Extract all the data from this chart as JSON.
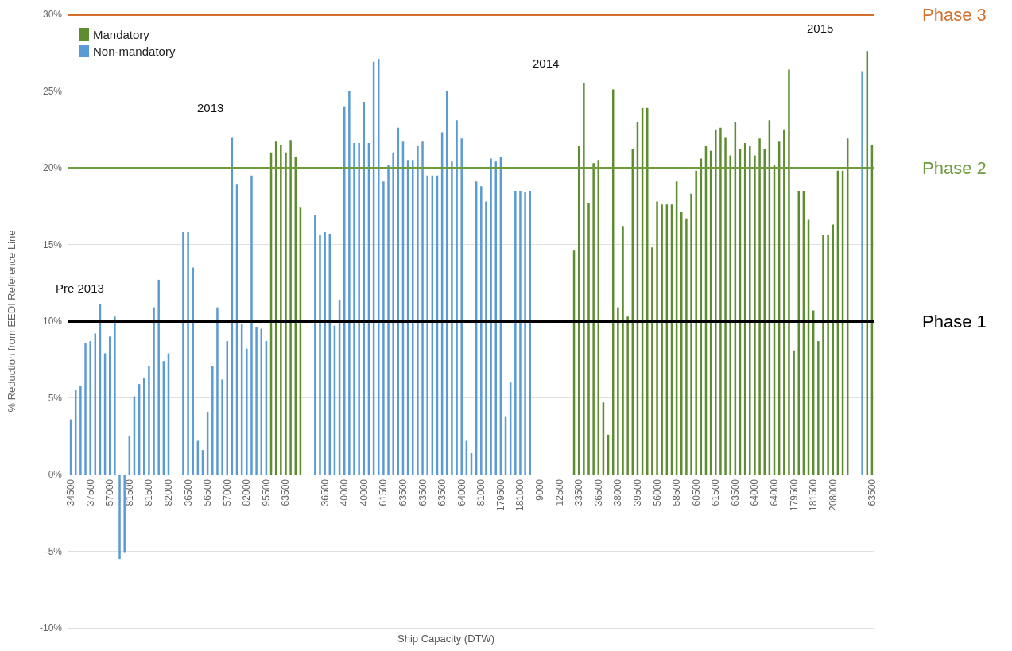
{
  "chart_data": {
    "type": "bar",
    "xlabel": "Ship Capacity (DTW)",
    "ylabel": "% Reduction from EEDI Reference Line",
    "categories": [
      "34500",
      null,
      null,
      null,
      "37500",
      null,
      null,
      null,
      "57000",
      null,
      null,
      null,
      "81500",
      null,
      null,
      null,
      "81500",
      null,
      null,
      null,
      "82000",
      null,
      null,
      null,
      "36500",
      null,
      null,
      null,
      "56500",
      null,
      null,
      null,
      "57000",
      null,
      null,
      null,
      "82000",
      null,
      null,
      null,
      "95500",
      null,
      null,
      null,
      "63500",
      null,
      null,
      null,
      null,
      null,
      null,
      null,
      "36500",
      null,
      null,
      null,
      "40000",
      null,
      null,
      null,
      "40000",
      null,
      null,
      null,
      "61500",
      null,
      null,
      null,
      "63500",
      null,
      null,
      null,
      "63500",
      null,
      null,
      null,
      "63500",
      null,
      null,
      null,
      "64000",
      null,
      null,
      null,
      "81000",
      null,
      null,
      null,
      "179500",
      null,
      null,
      null,
      "181000",
      null,
      null,
      null,
      "9000",
      null,
      null,
      null,
      "12500",
      null,
      null,
      null,
      "33500",
      null,
      null,
      null,
      "36500",
      null,
      null,
      null,
      "38000",
      null,
      null,
      null,
      "39500",
      null,
      null,
      null,
      "56000",
      null,
      null,
      null,
      "58500",
      null,
      null,
      null,
      "60500",
      null,
      null,
      null,
      "61500",
      null,
      null,
      null,
      "63500",
      null,
      null,
      null,
      "64000",
      null,
      null,
      null,
      "64000",
      null,
      null,
      null,
      "179500",
      null,
      null,
      null,
      "181500",
      null,
      null,
      null,
      "208000",
      null,
      null,
      null,
      null,
      null,
      null,
      null,
      "63500"
    ],
    "series": [
      {
        "name": "Mandatory",
        "color": "#5e8c31",
        "values": [
          null,
          null,
          null,
          null,
          null,
          null,
          null,
          null,
          null,
          null,
          null,
          null,
          null,
          null,
          null,
          null,
          null,
          null,
          null,
          null,
          null,
          null,
          null,
          null,
          null,
          null,
          null,
          null,
          null,
          null,
          null,
          null,
          null,
          null,
          null,
          null,
          null,
          null,
          null,
          null,
          null,
          21.0,
          21.7,
          21.5,
          21.0,
          21.8,
          20.7,
          17.4,
          null,
          null,
          null,
          null,
          null,
          null,
          null,
          null,
          null,
          null,
          null,
          null,
          null,
          null,
          null,
          null,
          null,
          null,
          null,
          null,
          null,
          null,
          null,
          null,
          null,
          null,
          null,
          null,
          null,
          null,
          null,
          null,
          null,
          null,
          null,
          null,
          null,
          null,
          null,
          null,
          null,
          null,
          null,
          null,
          null,
          null,
          null,
          null,
          null,
          null,
          null,
          null,
          null,
          null,
          null,
          14.6,
          21.4,
          25.5,
          17.7,
          20.3,
          20.5,
          4.7,
          2.6,
          25.1,
          10.9,
          16.2,
          10.3,
          21.2,
          23.0,
          23.9,
          23.9,
          14.8,
          17.8,
          17.6,
          17.6,
          17.6,
          19.1,
          17.1,
          16.7,
          18.3,
          19.8,
          20.6,
          21.4,
          21.1,
          22.5,
          22.6,
          22.0,
          20.8,
          23.0,
          21.2,
          21.6,
          21.4,
          20.8,
          21.9,
          21.2,
          23.1,
          20.2,
          21.7,
          22.5,
          26.4,
          8.1,
          18.5,
          18.5,
          16.6,
          10.7,
          8.7,
          15.6,
          15.6,
          16.3,
          19.8,
          19.8,
          21.9,
          null,
          null,
          null,
          27.6,
          21.5
        ]
      },
      {
        "name": "Non-mandatory",
        "color": "#5b9bd5",
        "values": [
          3.6,
          5.5,
          5.8,
          8.6,
          8.7,
          9.2,
          11.1,
          7.9,
          9.0,
          10.3,
          -5.5,
          -5.1,
          2.5,
          5.1,
          5.9,
          6.3,
          7.1,
          10.9,
          12.7,
          7.4,
          7.9,
          null,
          null,
          15.8,
          15.8,
          13.5,
          2.2,
          1.6,
          4.1,
          7.1,
          10.9,
          6.2,
          8.7,
          22.0,
          18.9,
          9.8,
          8.2,
          19.5,
          9.6,
          9.5,
          8.7,
          null,
          null,
          null,
          null,
          null,
          null,
          null,
          null,
          null,
          16.9,
          15.6,
          15.8,
          15.7,
          9.7,
          11.4,
          24.0,
          25.0,
          21.6,
          21.6,
          24.3,
          21.6,
          26.9,
          27.1,
          19.1,
          20.2,
          21.0,
          22.6,
          21.7,
          20.5,
          20.5,
          21.4,
          21.7,
          19.5,
          19.5,
          19.5,
          22.3,
          25.0,
          20.4,
          23.1,
          21.9,
          2.2,
          1.4,
          19.1,
          18.8,
          17.8,
          20.6,
          20.4,
          20.7,
          3.8,
          6.0,
          18.5,
          18.5,
          18.4,
          18.5,
          null,
          null,
          null,
          null,
          null,
          null,
          null,
          null,
          null,
          null,
          null,
          null,
          null,
          null,
          null,
          null,
          null,
          null,
          null,
          null,
          null,
          null,
          null,
          null,
          null,
          null,
          null,
          null,
          null,
          null,
          null,
          null,
          null,
          null,
          null,
          null,
          null,
          null,
          null,
          null,
          null,
          null,
          null,
          null,
          null,
          null,
          null,
          null,
          null,
          null,
          null,
          null,
          null,
          null,
          null,
          null,
          null,
          null,
          null,
          null,
          null,
          null,
          null,
          null,
          null,
          null,
          null,
          26.3,
          null,
          null
        ]
      }
    ],
    "ylim": [
      -10,
      30
    ],
    "yticks": [
      {
        "value": -10,
        "label": "-10%"
      },
      {
        "value": -5,
        "label": "-5%"
      },
      {
        "value": 0,
        "label": "0%"
      },
      {
        "value": 5,
        "label": "5%"
      },
      {
        "value": 10,
        "label": "10%"
      },
      {
        "value": 15,
        "label": "15%"
      },
      {
        "value": 20,
        "label": "20%"
      },
      {
        "value": 25,
        "label": "25%"
      },
      {
        "value": 30,
        "label": "30%"
      }
    ],
    "grid": "y",
    "legend": "top left",
    "ref_lines": [
      {
        "axis": "y",
        "value": 10,
        "label": "Phase 1",
        "color": "#000000"
      },
      {
        "axis": "y",
        "value": 20,
        "label": "Phase 2",
        "color": "#6e9b3c"
      },
      {
        "axis": "y",
        "value": 30,
        "label": "Phase 3",
        "color": "#d5702c"
      }
    ],
    "annotations": [
      "Pre 2013",
      "2013",
      "2014",
      "2015"
    ]
  }
}
